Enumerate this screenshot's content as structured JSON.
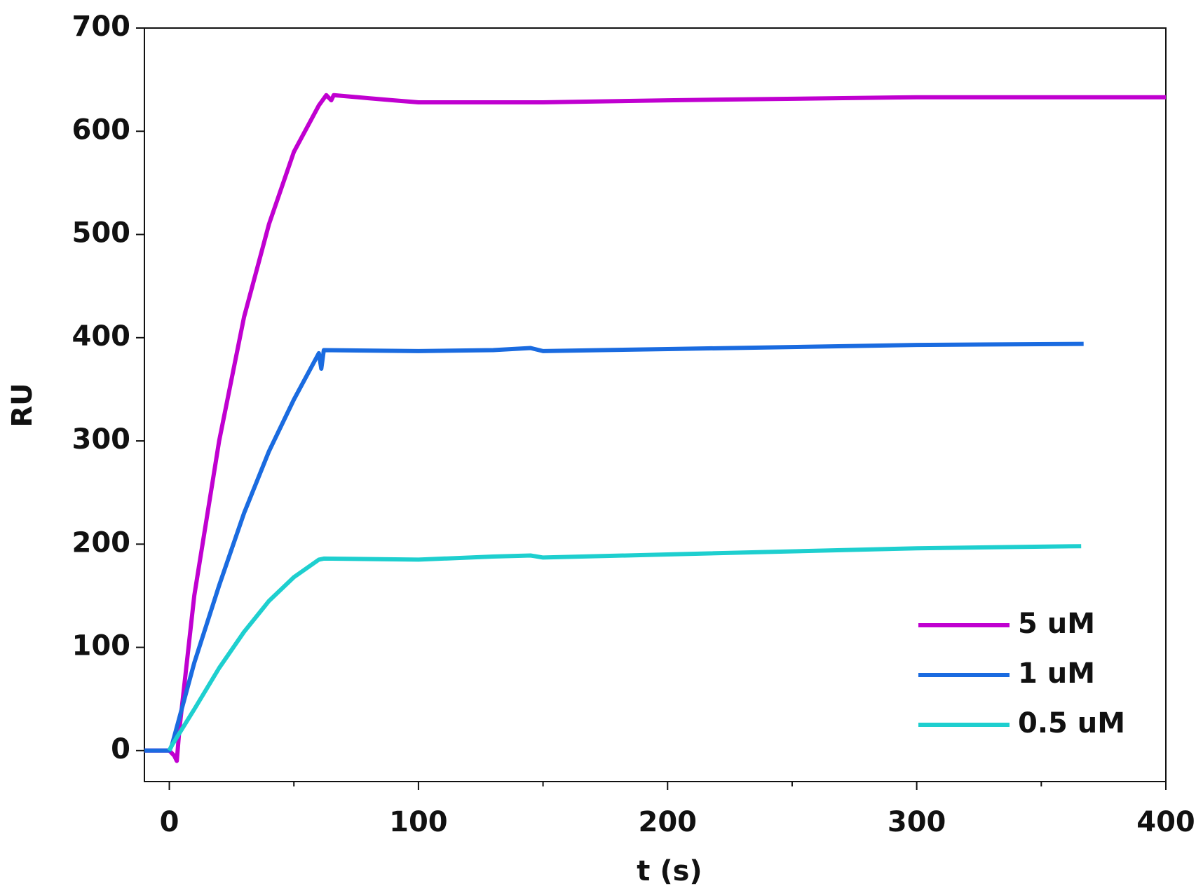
{
  "chart_data": {
    "type": "line",
    "xlabel": "t (s)",
    "ylabel": "RU",
    "xlim": [
      -10,
      400
    ],
    "ylim": [
      -30,
      700
    ],
    "xticks": [
      0,
      100,
      200,
      300,
      400
    ],
    "xminorticks": [
      50,
      150,
      250,
      350
    ],
    "yticks": [
      0,
      100,
      200,
      300,
      400,
      500,
      600,
      700
    ],
    "legend": "lower right",
    "grid": false,
    "series": [
      {
        "name": "5 uM",
        "color": "#c000d0",
        "x": [
          -10,
          0,
          2,
          3,
          4,
          10,
          20,
          30,
          40,
          50,
          60,
          63,
          65,
          66,
          80,
          90,
          100,
          150,
          200,
          300,
          400
        ],
        "values": [
          0,
          0,
          -5,
          -10,
          20,
          150,
          300,
          420,
          510,
          580,
          625,
          635,
          630,
          635,
          632,
          630,
          628,
          628,
          630,
          633,
          633
        ]
      },
      {
        "name": "1 uM",
        "color": "#1a6be0",
        "x": [
          -10,
          0,
          1,
          10,
          20,
          30,
          40,
          50,
          60,
          61,
          62,
          100,
          130,
          145,
          150,
          200,
          300,
          367
        ],
        "values": [
          0,
          0,
          5,
          85,
          160,
          230,
          290,
          340,
          385,
          370,
          388,
          387,
          388,
          390,
          387,
          389,
          393,
          394
        ]
      },
      {
        "name": "0.5 uM",
        "color": "#1ecfcf",
        "x": [
          0,
          1,
          10,
          20,
          30,
          40,
          50,
          60,
          62,
          100,
          130,
          145,
          150,
          200,
          300,
          366
        ],
        "values": [
          0,
          5,
          40,
          80,
          115,
          145,
          168,
          185,
          186,
          185,
          188,
          189,
          187,
          190,
          196,
          198
        ]
      }
    ]
  }
}
